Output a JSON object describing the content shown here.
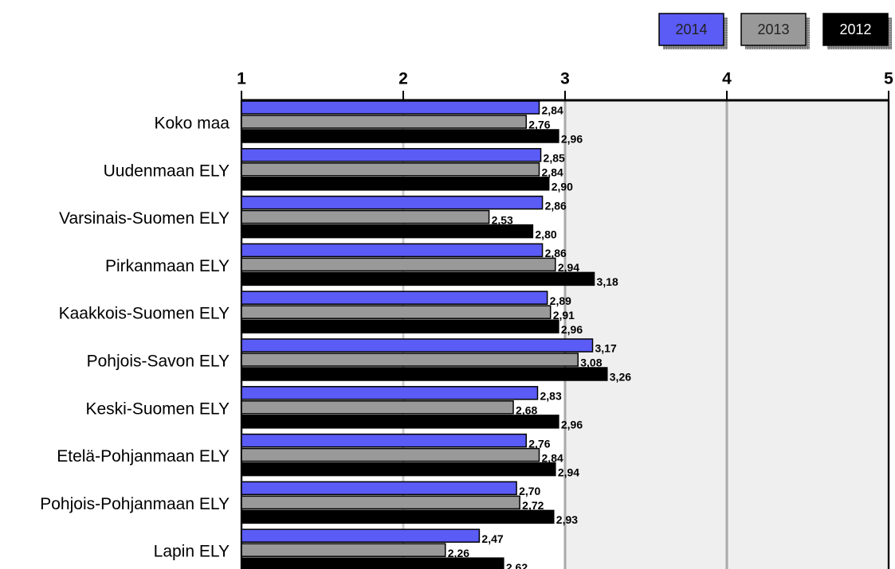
{
  "chart_data": {
    "type": "bar",
    "orientation": "horizontal",
    "categories": [
      "Koko maa",
      "Uudenmaan ELY",
      "Varsinais-Suomen ELY",
      "Pirkanmaan ELY",
      "Kaakkois-Suomen ELY",
      "Pohjois-Savon ELY",
      "Keski-Suomen ELY",
      "Etelä-Pohjanmaan ELY",
      "Pohjois-Pohjanmaan ELY",
      "Lapin ELY"
    ],
    "series": [
      {
        "name": "2014",
        "color": "#5b5bf5",
        "values": [
          2.84,
          2.85,
          2.86,
          2.86,
          2.89,
          3.17,
          2.83,
          2.76,
          2.7,
          2.47
        ],
        "value_labels": [
          "2,84",
          "2,85",
          "2,86",
          "2,86",
          "2,89",
          "3,17",
          "2,83",
          "2,76",
          "2,70",
          "2,47"
        ]
      },
      {
        "name": "2013",
        "color": "#999999",
        "values": [
          2.76,
          2.84,
          2.53,
          2.94,
          2.91,
          3.08,
          2.68,
          2.84,
          2.72,
          2.26
        ],
        "value_labels": [
          "2,76",
          "2,84",
          "2,53",
          "2,94",
          "2,91",
          "3,08",
          "2,68",
          "2,84",
          "2,72",
          "2,26"
        ]
      },
      {
        "name": "2012",
        "color": "#000000",
        "values": [
          2.96,
          2.9,
          2.8,
          3.18,
          2.96,
          3.26,
          2.96,
          2.94,
          2.93,
          2.62
        ],
        "value_labels": [
          "2,96",
          "2,90",
          "2,80",
          "3,18",
          "2,96",
          "3,26",
          "2,96",
          "2,94",
          "2,93",
          "2,62"
        ]
      }
    ],
    "xlim": [
      1,
      5
    ],
    "xticks": [
      1,
      2,
      3,
      4,
      5
    ],
    "highlight_range": [
      3,
      5
    ],
    "grid": true,
    "legend": "top-right"
  }
}
